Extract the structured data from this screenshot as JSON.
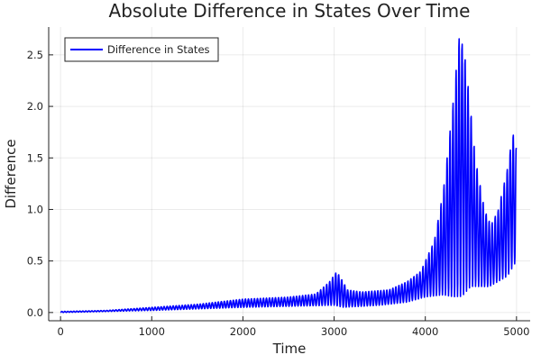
{
  "chart_data": {
    "type": "line",
    "title": "Absolute Difference in States Over Time",
    "xlabel": "Time",
    "ylabel": "Difference",
    "xlim": [
      -130,
      5150
    ],
    "ylim": [
      -0.08,
      2.77
    ],
    "xticks": [
      0,
      1000,
      2000,
      3000,
      4000,
      5000
    ],
    "xtick_labels": [
      "0",
      "1000",
      "2000",
      "3000",
      "4000",
      "5000"
    ],
    "yticks": [
      0,
      0.5,
      1,
      1.5,
      2,
      2.5
    ],
    "ytick_labels": [
      "0.0",
      "0.5",
      "1.0",
      "1.5",
      "2.0",
      "2.5"
    ],
    "grid": true,
    "legend": {
      "position": "top-left",
      "entries": [
        "Difference in States"
      ]
    },
    "series": [
      {
        "name": "Difference in States",
        "color": "#0000ff",
        "oscillation_period": 33,
        "upper_envelope": [
          [
            0,
            0.01
          ],
          [
            500,
            0.02
          ],
          [
            1000,
            0.05
          ],
          [
            1500,
            0.08
          ],
          [
            1800,
            0.11
          ],
          [
            2000,
            0.13
          ],
          [
            2500,
            0.15
          ],
          [
            2800,
            0.18
          ],
          [
            2950,
            0.3
          ],
          [
            3030,
            0.4
          ],
          [
            3150,
            0.22
          ],
          [
            3300,
            0.2
          ],
          [
            3600,
            0.22
          ],
          [
            3800,
            0.3
          ],
          [
            3950,
            0.4
          ],
          [
            4100,
            0.7
          ],
          [
            4200,
            1.2
          ],
          [
            4300,
            2.0
          ],
          [
            4370,
            2.68
          ],
          [
            4420,
            2.6
          ],
          [
            4460,
            2.3
          ],
          [
            4550,
            1.5
          ],
          [
            4650,
            1.0
          ],
          [
            4720,
            0.85
          ],
          [
            4800,
            1.0
          ],
          [
            4900,
            1.4
          ],
          [
            4960,
            1.75
          ],
          [
            5000,
            1.6
          ]
        ],
        "lower_envelope": [
          [
            0,
            0
          ],
          [
            1000,
            0.02
          ],
          [
            2000,
            0.05
          ],
          [
            3000,
            0.07
          ],
          [
            3100,
            0.05
          ],
          [
            3500,
            0.07
          ],
          [
            3800,
            0.1
          ],
          [
            4000,
            0.15
          ],
          [
            4200,
            0.17
          ],
          [
            4300,
            0.15
          ],
          [
            4400,
            0.15
          ],
          [
            4500,
            0.25
          ],
          [
            4700,
            0.25
          ],
          [
            4900,
            0.35
          ],
          [
            5000,
            0.5
          ]
        ]
      }
    ]
  }
}
